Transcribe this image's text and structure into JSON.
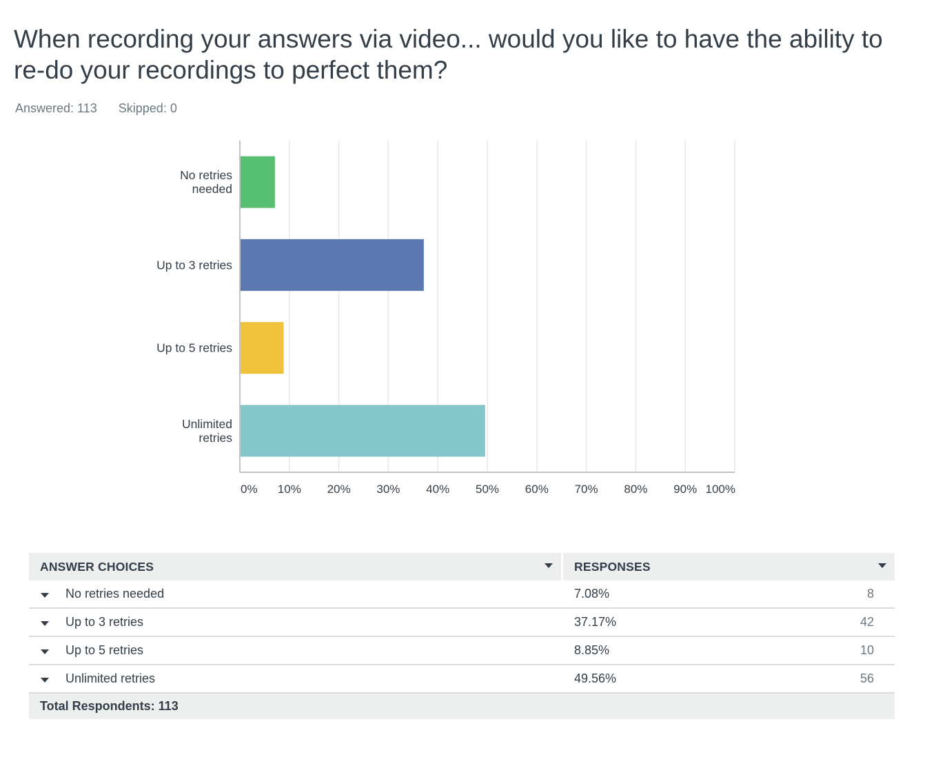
{
  "question": {
    "title": "When recording your answers via video... would you like to have the ability to re-do your recordings to perfect them?",
    "answered": "Answered: 113",
    "skipped": "Skipped: 0"
  },
  "chart_data": {
    "type": "bar",
    "orientation": "horizontal",
    "categories": [
      "No retries needed",
      "Up to 3 retries",
      "Up to 5 retries",
      "Unlimited retries"
    ],
    "category_labels": [
      [
        "No retries",
        "needed"
      ],
      [
        "Up to 3 retries"
      ],
      [
        "Up to 5 retries"
      ],
      [
        "Unlimited",
        "retries"
      ]
    ],
    "values": [
      7.08,
      37.17,
      8.85,
      49.56
    ],
    "colors": [
      "#57bf72",
      "#5b78b1",
      "#f0c23b",
      "#84c6cb"
    ],
    "xlim": [
      0,
      100
    ],
    "xticks": [
      "0%",
      "10%",
      "20%",
      "30%",
      "40%",
      "50%",
      "60%",
      "70%",
      "80%",
      "90%",
      "100%"
    ],
    "grid": true
  },
  "table": {
    "headers": {
      "choices": "ANSWER CHOICES",
      "responses": "RESPONSES"
    },
    "rows": [
      {
        "choice": "No retries needed",
        "percent": "7.08%",
        "count": "8"
      },
      {
        "choice": "Up to 3 retries",
        "percent": "37.17%",
        "count": "42"
      },
      {
        "choice": "Up to 5 retries",
        "percent": "8.85%",
        "count": "10"
      },
      {
        "choice": "Unlimited retries",
        "percent": "49.56%",
        "count": "56"
      }
    ],
    "total": "Total Respondents: 113"
  }
}
